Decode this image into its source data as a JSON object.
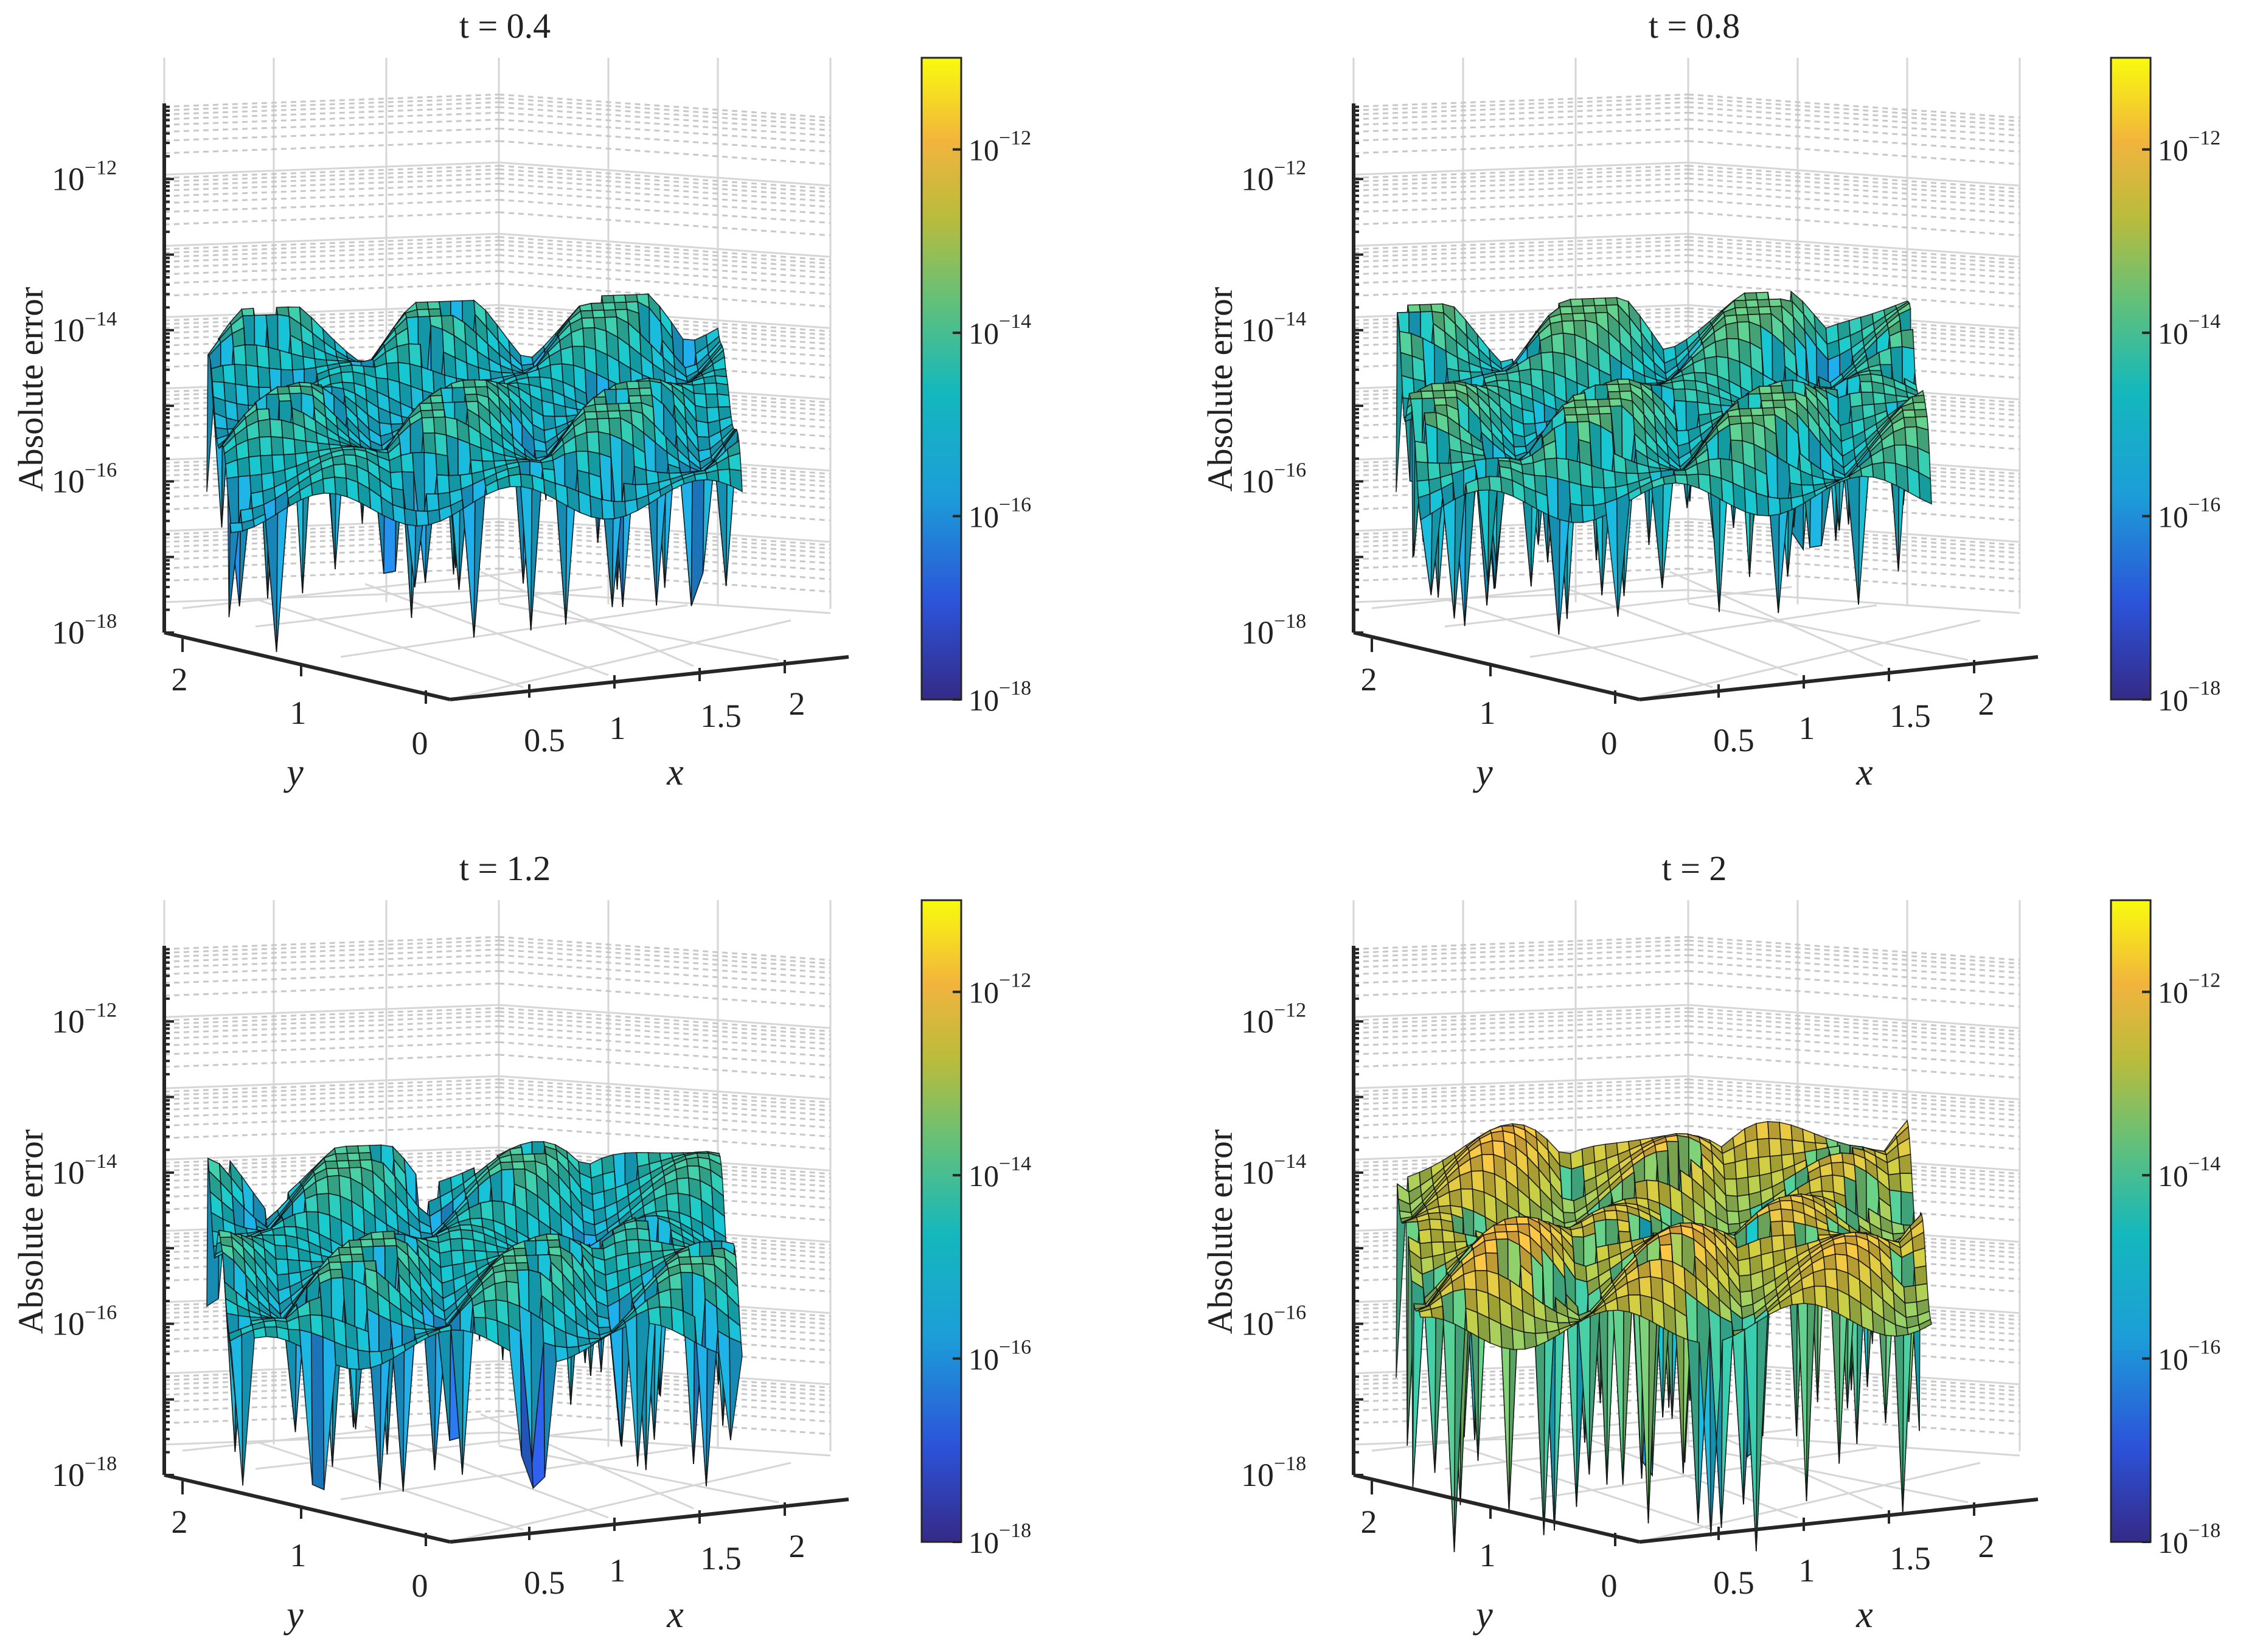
{
  "chart_data": [
    {
      "type": "surface3d",
      "title": "t = 0.4",
      "xlabel": "x",
      "ylabel": "y",
      "zlabel": "Absolute error",
      "zscale": "log",
      "zlim": [
        1e-18,
        1e-11
      ],
      "z_ticks": [
        "10^{-12}",
        "10^{-14}",
        "10^{-16}",
        "10^{-18}"
      ],
      "x_ticks": [
        "0.5",
        "1",
        "1.5",
        "2"
      ],
      "y_ticks": [
        "2",
        "1",
        "0"
      ],
      "colorbar": {
        "colormap": "parula",
        "ticks": [
          "10^{-12}",
          "10^{-14}",
          "10^{-16}",
          "10^{-18}"
        ]
      },
      "typical_log10_error": -15.0,
      "peak_log10_error": -14.1,
      "min_log10_error": -18.0
    },
    {
      "type": "surface3d",
      "title": "t = 0.8",
      "xlabel": "x",
      "ylabel": "y",
      "zlabel": "Absolute error",
      "zscale": "log",
      "zlim": [
        1e-18,
        1e-11
      ],
      "z_ticks": [
        "10^{-12}",
        "10^{-14}",
        "10^{-16}",
        "10^{-18}"
      ],
      "x_ticks": [
        "0.5",
        "1",
        "1.5",
        "2"
      ],
      "y_ticks": [
        "2",
        "1",
        "0"
      ],
      "colorbar": {
        "colormap": "parula",
        "ticks": [
          "10^{-12}",
          "10^{-14}",
          "10^{-16}",
          "10^{-18}"
        ]
      },
      "typical_log10_error": -14.6,
      "peak_log10_error": -13.7,
      "min_log10_error": -17.4
    },
    {
      "type": "surface3d",
      "title": "t = 1.2",
      "xlabel": "x",
      "ylabel": "y",
      "zlabel": "Absolute error",
      "zscale": "log",
      "zlim": [
        1e-18,
        1e-11
      ],
      "z_ticks": [
        "10^{-12}",
        "10^{-14}",
        "10^{-16}",
        "10^{-18}"
      ],
      "x_ticks": [
        "0.5",
        "1",
        "1.5",
        "2"
      ],
      "y_ticks": [
        "2",
        "1",
        "0"
      ],
      "colorbar": {
        "colormap": "parula",
        "ticks": [
          "10^{-12}",
          "10^{-14}",
          "10^{-16}",
          "10^{-18}"
        ]
      },
      "typical_log10_error": -14.9,
      "peak_log10_error": -14.0,
      "min_log10_error": -18.0
    },
    {
      "type": "surface3d",
      "title": "t = 2",
      "xlabel": "x",
      "ylabel": "y",
      "zlabel": "Absolute error",
      "zscale": "log",
      "zlim": [
        1e-18,
        1e-11
      ],
      "z_ticks": [
        "10^{-12}",
        "10^{-14}",
        "10^{-16}",
        "10^{-18}"
      ],
      "x_ticks": [
        "0.5",
        "1",
        "1.5",
        "2"
      ],
      "y_ticks": [
        "2",
        "1",
        "0"
      ],
      "colorbar": {
        "colormap": "parula",
        "ticks": [
          "10^{-12}",
          "10^{-14}",
          "10^{-16}",
          "10^{-18}"
        ]
      },
      "typical_log10_error": -13.0,
      "peak_log10_error": -11.9,
      "min_log10_error": -17.6
    }
  ],
  "colors": {
    "parula_low": "#352a87",
    "parula_midlow": "#1c9ed8",
    "parula_mid": "#20b2aa",
    "parula_midhigh": "#a5be3b",
    "parula_high": "#f2b33d",
    "parula_top": "#f9fb0e"
  }
}
